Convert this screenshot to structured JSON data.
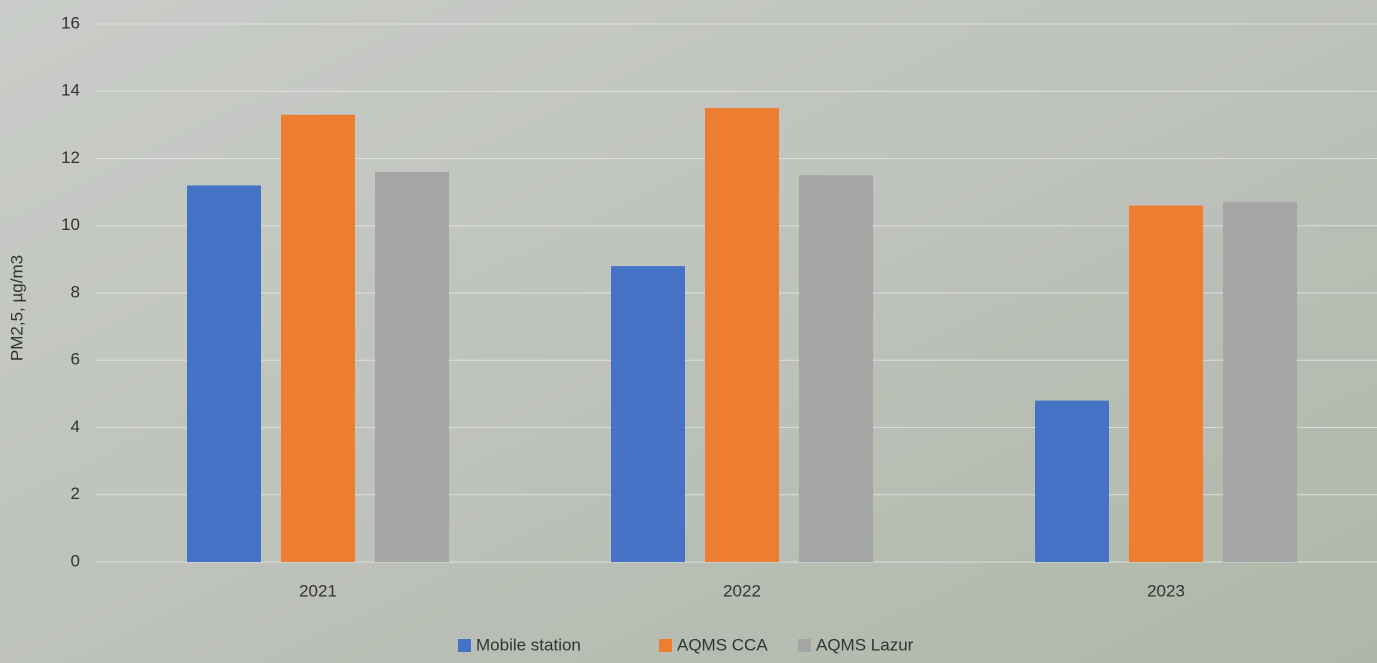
{
  "chart_data": {
    "type": "bar",
    "y_label": "PM2,5, µg/m3",
    "categories": [
      "2021",
      "2022",
      "2023"
    ],
    "series": [
      {
        "name": "Mobile station",
        "color": "#4472c4",
        "values": [
          11.2,
          8.8,
          4.8
        ]
      },
      {
        "name": "AQMS CCA",
        "color": "#ed7d31",
        "values": [
          13.3,
          13.5,
          10.6
        ]
      },
      {
        "name": "AQMS Lazur",
        "color": "#a5a5a5",
        "values": [
          11.6,
          11.5,
          10.7
        ]
      }
    ],
    "ylim": [
      0,
      16
    ],
    "yticks": [
      0,
      2,
      4,
      6,
      8,
      10,
      12,
      14,
      16
    ],
    "grid": true,
    "legend": "bottom"
  }
}
